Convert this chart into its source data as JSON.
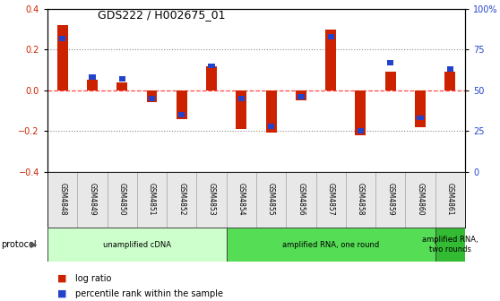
{
  "title": "GDS222 / H002675_01",
  "samples": [
    "GSM4848",
    "GSM4849",
    "GSM4850",
    "GSM4851",
    "GSM4852",
    "GSM4853",
    "GSM4854",
    "GSM4855",
    "GSM4856",
    "GSM4857",
    "GSM4858",
    "GSM4859",
    "GSM4860",
    "GSM4861"
  ],
  "log_ratio": [
    0.32,
    0.05,
    0.04,
    -0.06,
    -0.14,
    0.12,
    -0.19,
    -0.21,
    -0.05,
    0.3,
    -0.22,
    0.09,
    -0.18,
    0.09
  ],
  "percentile": [
    82,
    58,
    57,
    45,
    35,
    65,
    45,
    28,
    46,
    83,
    25,
    67,
    33,
    63
  ],
  "ylim_left": [
    -0.4,
    0.4
  ],
  "ylim_right": [
    0,
    100
  ],
  "yticks_left": [
    -0.4,
    -0.2,
    0.0,
    0.2,
    0.4
  ],
  "yticks_right": [
    0,
    25,
    50,
    75,
    100
  ],
  "ytick_labels_right": [
    "0",
    "25",
    "50",
    "75",
    "100%"
  ],
  "protocol_groups": [
    {
      "label": "unamplified cDNA",
      "start": 0,
      "end": 5,
      "color": "#ccffcc"
    },
    {
      "label": "amplified RNA, one round",
      "start": 6,
      "end": 12,
      "color": "#55dd55"
    },
    {
      "label": "amplified RNA,\ntwo rounds",
      "start": 13,
      "end": 13,
      "color": "#33bb33"
    }
  ],
  "bar_color_red": "#cc2200",
  "bar_color_blue": "#2244cc",
  "zero_line_color": "#ff4444",
  "grid_color": "#888888",
  "bg_color": "#ffffff",
  "legend_red_label": "log ratio",
  "legend_blue_label": "percentile rank within the sample",
  "protocol_label": "protocol",
  "bar_width": 0.4
}
